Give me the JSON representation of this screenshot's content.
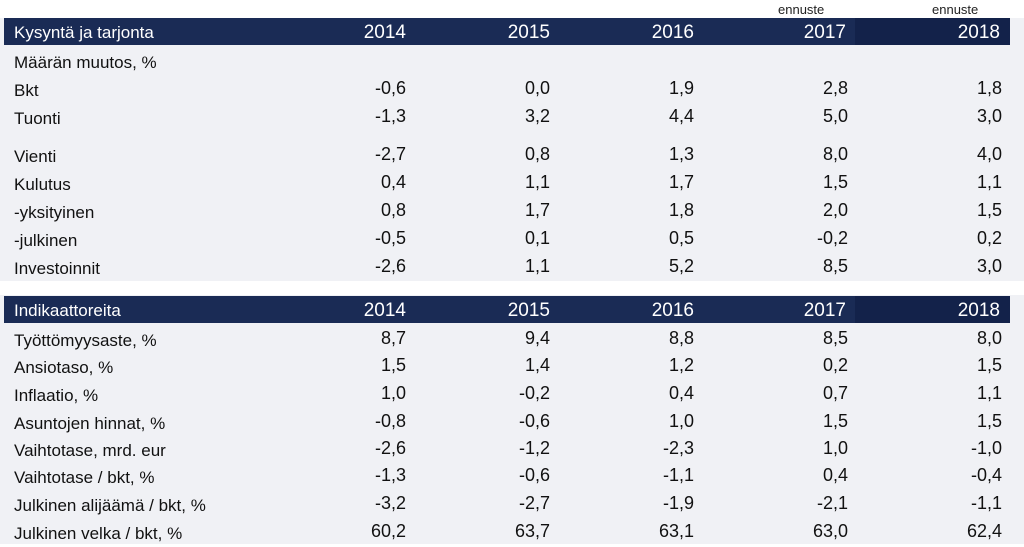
{
  "forecast_label": "ennuste",
  "sections": [
    {
      "title": "Kysyntä ja tarjonta",
      "years": [
        "2014",
        "2015",
        "2016",
        "2017",
        "2018"
      ],
      "rows": [
        {
          "label": "Määrän muutos, %",
          "values": [
            "",
            "",
            "",
            "",
            ""
          ]
        },
        {
          "label": "Bkt",
          "values": [
            "-0,6",
            "0,0",
            "1,9",
            "2,8",
            "1,8"
          ]
        },
        {
          "label": "Tuonti",
          "values": [
            "-1,3",
            "3,2",
            "4,4",
            "5,0",
            "3,0"
          ]
        },
        {
          "label": "Vienti",
          "values": [
            "-2,7",
            "0,8",
            "1,3",
            "8,0",
            "4,0"
          ]
        },
        {
          "label": "Kulutus",
          "values": [
            "0,4",
            "1,1",
            "1,7",
            "1,5",
            "1,1"
          ]
        },
        {
          "label": "-yksityinen",
          "values": [
            "0,8",
            "1,7",
            "1,8",
            "2,0",
            "1,5"
          ]
        },
        {
          "label": "-julkinen",
          "values": [
            "-0,5",
            "0,1",
            "0,5",
            "-0,2",
            "0,2"
          ]
        },
        {
          "label": "Investoinnit",
          "values": [
            "-2,6",
            "1,1",
            "5,2",
            "8,5",
            "3,0"
          ]
        }
      ]
    },
    {
      "title": "Indikaattoreita",
      "years": [
        "2014",
        "2015",
        "2016",
        "2017",
        "2018"
      ],
      "rows": [
        {
          "label": "Työttömyysaste, %",
          "values": [
            "8,7",
            "9,4",
            "8,8",
            "8,5",
            "8,0"
          ]
        },
        {
          "label": "Ansiotaso, %",
          "values": [
            "1,5",
            "1,4",
            "1,2",
            "0,2",
            "1,5"
          ]
        },
        {
          "label": "Inflaatio, %",
          "values": [
            "1,0",
            "-0,2",
            "0,4",
            "0,7",
            "1,1"
          ]
        },
        {
          "label": "Asuntojen hinnat, %",
          "values": [
            "-0,8",
            "-0,6",
            "1,0",
            "1,5",
            "1,5"
          ]
        },
        {
          "label": "Vaihtotase, mrd. eur",
          "values": [
            "-2,6",
            "-1,2",
            "-2,3",
            "1,0",
            "-1,0"
          ]
        },
        {
          "label": "Vaihtotase / bkt, %",
          "values": [
            "-1,3",
            "-0,6",
            "-1,1",
            "0,4",
            "-0,4"
          ]
        },
        {
          "label": "Julkinen alijäämä / bkt, %",
          "values": [
            "-3,2",
            "-2,7",
            "-1,9",
            "-2,1",
            "-1,1"
          ]
        },
        {
          "label": "Julkinen velka / bkt, %",
          "values": [
            "60,2",
            "63,7",
            "63,1",
            "63,0",
            "62,4"
          ]
        }
      ]
    }
  ]
}
